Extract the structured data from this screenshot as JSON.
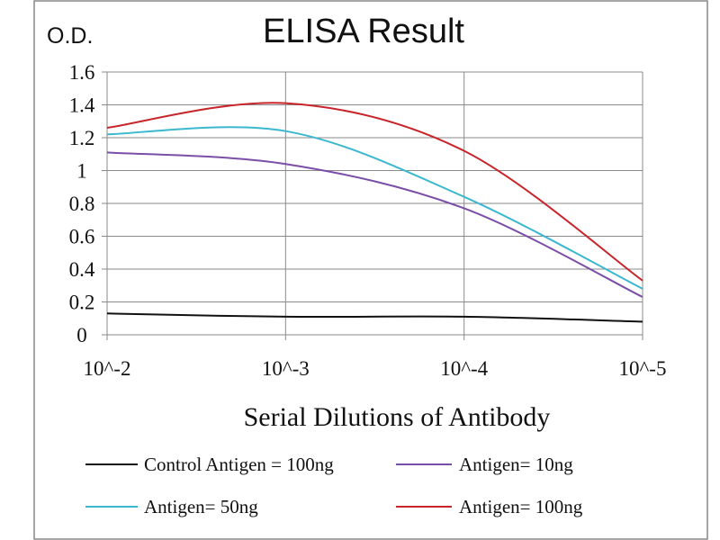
{
  "chart_data": {
    "type": "line",
    "title": "ELISA Result",
    "ylabel": "O.D.",
    "xlabel": "Serial  Dilutions  of Antibody",
    "x": [
      "10^-2",
      "10^-3",
      "10^-4",
      "10^-5"
    ],
    "ylim": [
      0,
      1.6
    ],
    "yticks": [
      "0",
      "0.2",
      "0.4",
      "0.6",
      "0.8",
      "1",
      "1.2",
      "1.4",
      "1.6"
    ],
    "grid": true,
    "legend_position": "bottom",
    "series": [
      {
        "name": "Control Antigen = 100ng",
        "color": "#111111",
        "values": [
          0.13,
          0.11,
          0.11,
          0.08
        ]
      },
      {
        "name": "Antigen= 10ng",
        "color": "#7b4fa8",
        "values": [
          1.11,
          1.04,
          0.77,
          0.23
        ]
      },
      {
        "name": "Antigen= 50ng",
        "color": "#3bb8cf",
        "values": [
          1.22,
          1.24,
          0.84,
          0.28
        ]
      },
      {
        "name": "Antigen= 100ng",
        "color": "#c8252b",
        "values": [
          1.26,
          1.41,
          1.12,
          0.33
        ]
      }
    ]
  }
}
